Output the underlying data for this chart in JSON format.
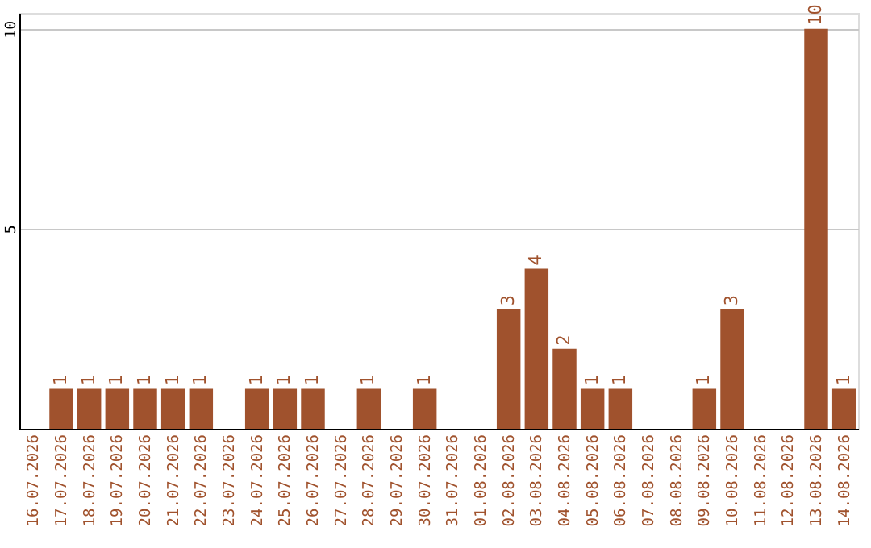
{
  "chart_data": {
    "type": "bar",
    "categories": [
      "16.07.2026",
      "17.07.2026",
      "18.07.2026",
      "19.07.2026",
      "20.07.2026",
      "21.07.2026",
      "22.07.2026",
      "23.07.2026",
      "24.07.2026",
      "25.07.2026",
      "26.07.2026",
      "27.07.2026",
      "28.07.2026",
      "29.07.2026",
      "30.07.2026",
      "31.07.2026",
      "01.08.2026",
      "02.08.2026",
      "03.08.2026",
      "04.08.2026",
      "05.08.2026",
      "06.08.2026",
      "07.08.2026",
      "08.08.2026",
      "09.08.2026",
      "10.08.2026",
      "11.08.2026",
      "12.08.2026",
      "13.08.2026",
      "14.08.2026"
    ],
    "values": [
      null,
      1,
      1,
      1,
      1,
      1,
      1,
      null,
      1,
      1,
      1,
      null,
      1,
      null,
      1,
      null,
      null,
      3,
      4,
      2,
      1,
      1,
      null,
      null,
      1,
      3,
      null,
      null,
      10,
      1
    ],
    "color": "#a0522d",
    "ylim": [
      0,
      10.4
    ],
    "yticks": [
      5,
      10
    ],
    "grid": "y",
    "data_labels": true
  }
}
